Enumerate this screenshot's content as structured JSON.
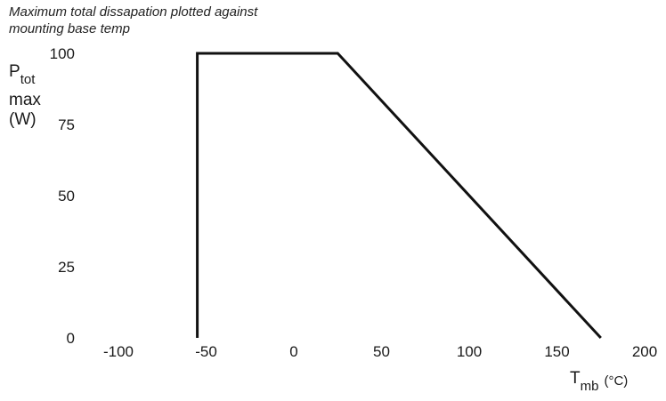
{
  "chart_data": {
    "type": "line",
    "title": "Maximum total dissapation plotted against\nmounting base temp",
    "ylabel": {
      "main": "P",
      "sub": "tot",
      "line2": "max",
      "unit": "(W)"
    },
    "xlabel": {
      "main": "T",
      "sub": "mb",
      "unit": "(°C)"
    },
    "xlim": [
      -100,
      200
    ],
    "ylim": [
      0,
      100
    ],
    "x_ticks": [
      "-100",
      "-50",
      "0",
      "50",
      "100",
      "150",
      "200"
    ],
    "y_ticks": [
      "0",
      "25",
      "50",
      "75",
      "100"
    ],
    "grid": false,
    "series": [
      {
        "x": [
          -55,
          -55,
          25,
          175
        ],
        "y": [
          0,
          100,
          100,
          0
        ]
      }
    ],
    "colors": {
      "line": "#111111",
      "text": "#1a1a1a"
    }
  }
}
